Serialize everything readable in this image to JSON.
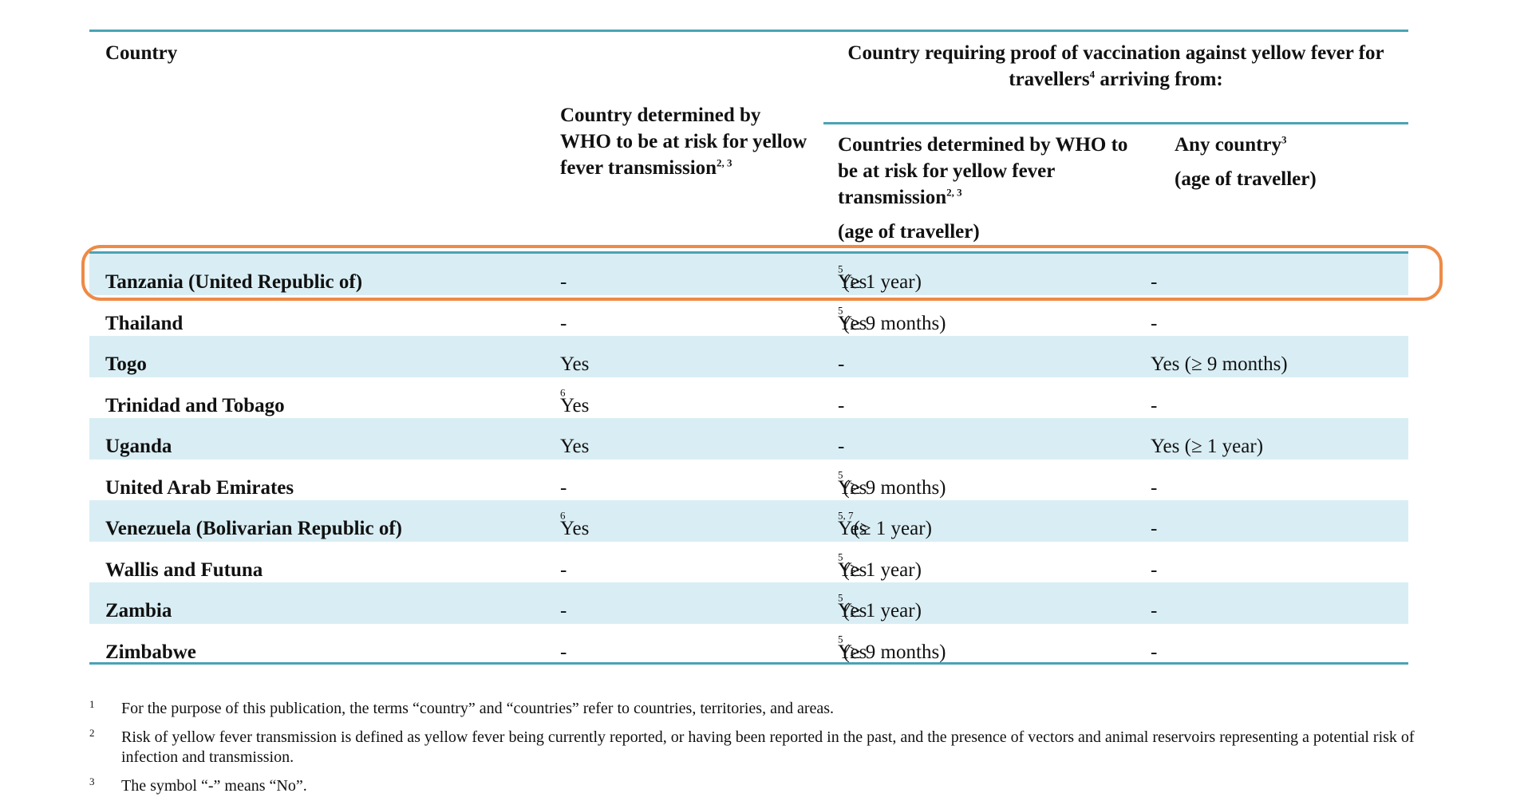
{
  "header": {
    "country": "Country",
    "group_title_pre": "Country requiring proof of vaccination against yellow fever for travellers",
    "group_title_sup": "4",
    "group_title_post": " arriving from:",
    "risk_col_text": "Country determined by WHO to be at risk for yellow fever transmission",
    "risk_col_sup": "2, 3",
    "from_risk_text": "Countries determined by WHO to be at risk for yellow fever transmission",
    "from_risk_sup": "2, 3",
    "from_risk_age": "(age of traveller)",
    "any_country_text": "Any country",
    "any_country_sup": "3",
    "any_country_age": "(age of traveller)"
  },
  "rows": [
    {
      "country": "Tanzania (United Republic of)",
      "risk": "-",
      "risk_sup": "",
      "from_risk": "Yes",
      "from_risk_sup": "5",
      "from_risk_age": " (≥ 1 year)",
      "any": "-"
    },
    {
      "country": "Thailand",
      "risk": "-",
      "risk_sup": "",
      "from_risk": "Yes",
      "from_risk_sup": "5",
      "from_risk_age": " (≥ 9 months)",
      "any": "-"
    },
    {
      "country": "Togo",
      "risk": "Yes",
      "risk_sup": "",
      "from_risk": "-",
      "from_risk_sup": "",
      "from_risk_age": "",
      "any": "Yes (≥ 9 months)"
    },
    {
      "country": "Trinidad and Tobago",
      "risk": "Yes",
      "risk_sup": "6",
      "from_risk": "-",
      "from_risk_sup": "",
      "from_risk_age": "",
      "any": "-"
    },
    {
      "country": "Uganda",
      "risk": "Yes",
      "risk_sup": "",
      "from_risk": "-",
      "from_risk_sup": "",
      "from_risk_age": "",
      "any": "Yes (≥ 1 year)"
    },
    {
      "country": "United Arab Emirates",
      "risk": "-",
      "risk_sup": "",
      "from_risk": "Yes",
      "from_risk_sup": "5",
      "from_risk_age": " (≥ 9 months)",
      "any": "-"
    },
    {
      "country": "Venezuela (Bolivarian Republic of)",
      "risk": "Yes",
      "risk_sup": "6",
      "from_risk": "Yes",
      "from_risk_sup": "5, 7",
      "from_risk_age": " (≥ 1 year)",
      "any": "-"
    },
    {
      "country": "Wallis and Futuna",
      "risk": "-",
      "risk_sup": "",
      "from_risk": "Yes",
      "from_risk_sup": "5",
      "from_risk_age": " (≥ 1 year)",
      "any": "-"
    },
    {
      "country": "Zambia",
      "risk": "-",
      "risk_sup": "",
      "from_risk": "Yes",
      "from_risk_sup": "5",
      "from_risk_age": " (≥ 1 year)",
      "any": "-"
    },
    {
      "country": "Zimbabwe",
      "risk": "-",
      "risk_sup": "",
      "from_risk": "Yes",
      "from_risk_sup": "5",
      "from_risk_age": " (≥ 9 months)",
      "any": "-"
    }
  ],
  "footnotes": [
    {
      "num": "1",
      "text": "For the purpose of this publication, the terms “country” and “countries” refer to countries, territories, and areas."
    },
    {
      "num": "2",
      "text": "Risk of yellow fever transmission is defined as yellow fever being currently reported, or having been reported in the past, and the presence of vectors and animal reservoirs representing a potential risk of infection and transmission."
    },
    {
      "num": "3",
      "text": "The symbol “-” means “No”."
    }
  ],
  "colors": {
    "rule": "#4aa3b5",
    "row_shade": "#d9eef4",
    "highlight": "#ee8a46"
  }
}
